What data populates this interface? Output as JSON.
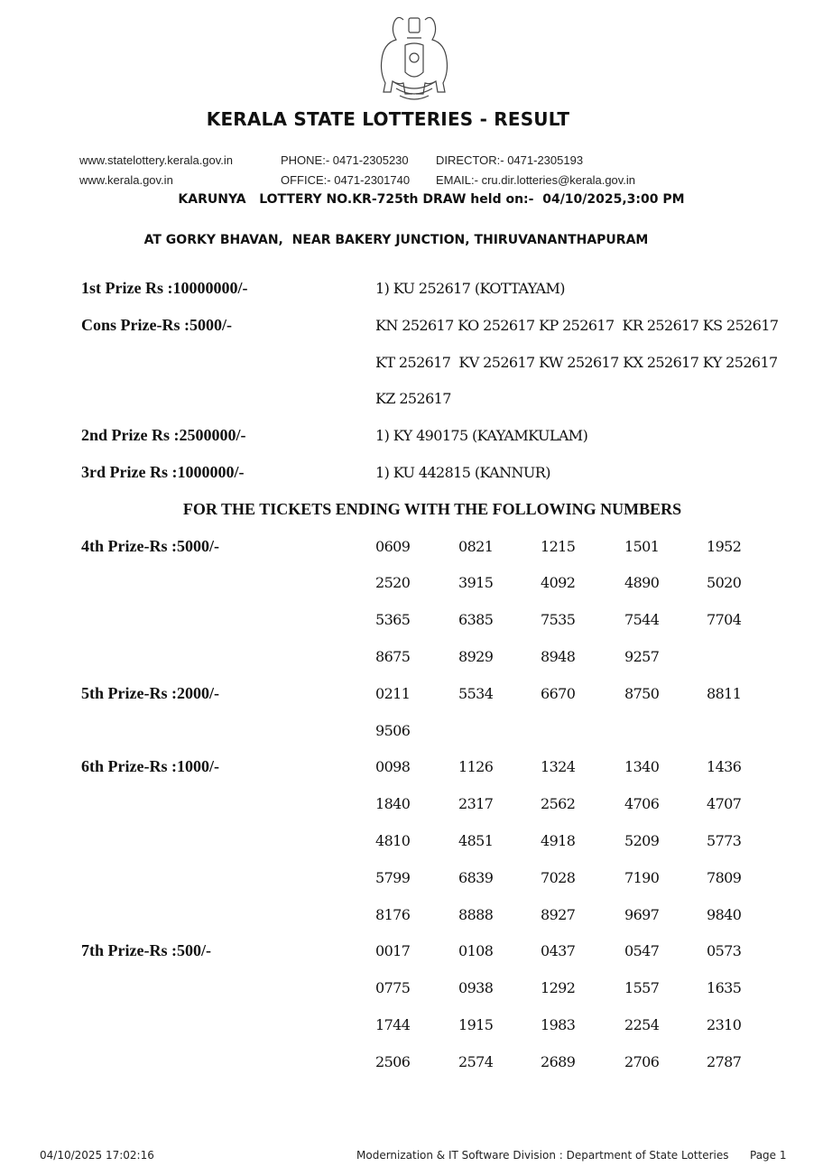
{
  "header": {
    "title": "KERALA STATE LOTTERIES - RESULT",
    "website1": "www.statelottery.kerala.gov.in",
    "website2": "www.kerala.gov.in",
    "phone": "PHONE:- 0471-2305230",
    "office": "OFFICE:- 0471-2301740",
    "director": "DIRECTOR:- 0471-2305193",
    "email": "EMAIL:- cru.dir.lotteries@kerala.gov.in",
    "draw_line": "KARUNYA   LOTTERY NO.KR-725th DRAW held on:-  04/10/2025,3:00 PM",
    "venue": "AT GORKY BHAVAN,  NEAR BAKERY JUNCTION, THIRUVANANTHAPURAM",
    "emblem_icon": "kerala-state-emblem"
  },
  "top_prizes": [
    {
      "label": "1st Prize Rs :10000000/-",
      "lines": [
        "1) KU 252617 (KOTTAYAM)"
      ]
    },
    {
      "label": "Cons Prize-Rs :5000/-",
      "lines": [
        "KN 252617 KO 252617 KP 252617  KR 252617 KS 252617",
        "KT 252617  KV 252617 KW 252617 KX 252617 KY 252617",
        "KZ 252617"
      ]
    },
    {
      "label": "2nd Prize Rs :2500000/-",
      "lines": [
        "1) KY 490175 (KAYAMKULAM)"
      ]
    },
    {
      "label": "3rd Prize Rs :1000000/-",
      "lines": [
        "1) KU 442815 (KANNUR)"
      ]
    }
  ],
  "ending_heading": "FOR THE TICKETS ENDING WITH THE FOLLOWING NUMBERS",
  "ending_prizes": [
    {
      "label": "4th Prize-Rs :5000/-",
      "numbers": [
        "0609",
        "0821",
        "1215",
        "1501",
        "1952",
        "2520",
        "3915",
        "4092",
        "4890",
        "5020",
        "5365",
        "6385",
        "7535",
        "7544",
        "7704",
        "8675",
        "8929",
        "8948",
        "9257"
      ]
    },
    {
      "label": "5th Prize-Rs :2000/-",
      "numbers": [
        "0211",
        "5534",
        "6670",
        "8750",
        "8811",
        "9506"
      ]
    },
    {
      "label": "6th Prize-Rs :1000/-",
      "numbers": [
        "0098",
        "1126",
        "1324",
        "1340",
        "1436",
        "1840",
        "2317",
        "2562",
        "4706",
        "4707",
        "4810",
        "4851",
        "4918",
        "5209",
        "5773",
        "5799",
        "6839",
        "7028",
        "7190",
        "7809",
        "8176",
        "8888",
        "8927",
        "9697",
        "9840"
      ]
    },
    {
      "label": "7th Prize-Rs :500/-",
      "numbers": [
        "0017",
        "0108",
        "0437",
        "0547",
        "0573",
        "0775",
        "0938",
        "1292",
        "1557",
        "1635",
        "1744",
        "1915",
        "1983",
        "2254",
        "2310",
        "2506",
        "2574",
        "2689",
        "2706",
        "2787"
      ]
    }
  ],
  "footer": {
    "timestamp": "04/10/2025 17:02:16",
    "division": "Modernization & IT Software Division : Department of State Lotteries",
    "page": "Page 1"
  }
}
